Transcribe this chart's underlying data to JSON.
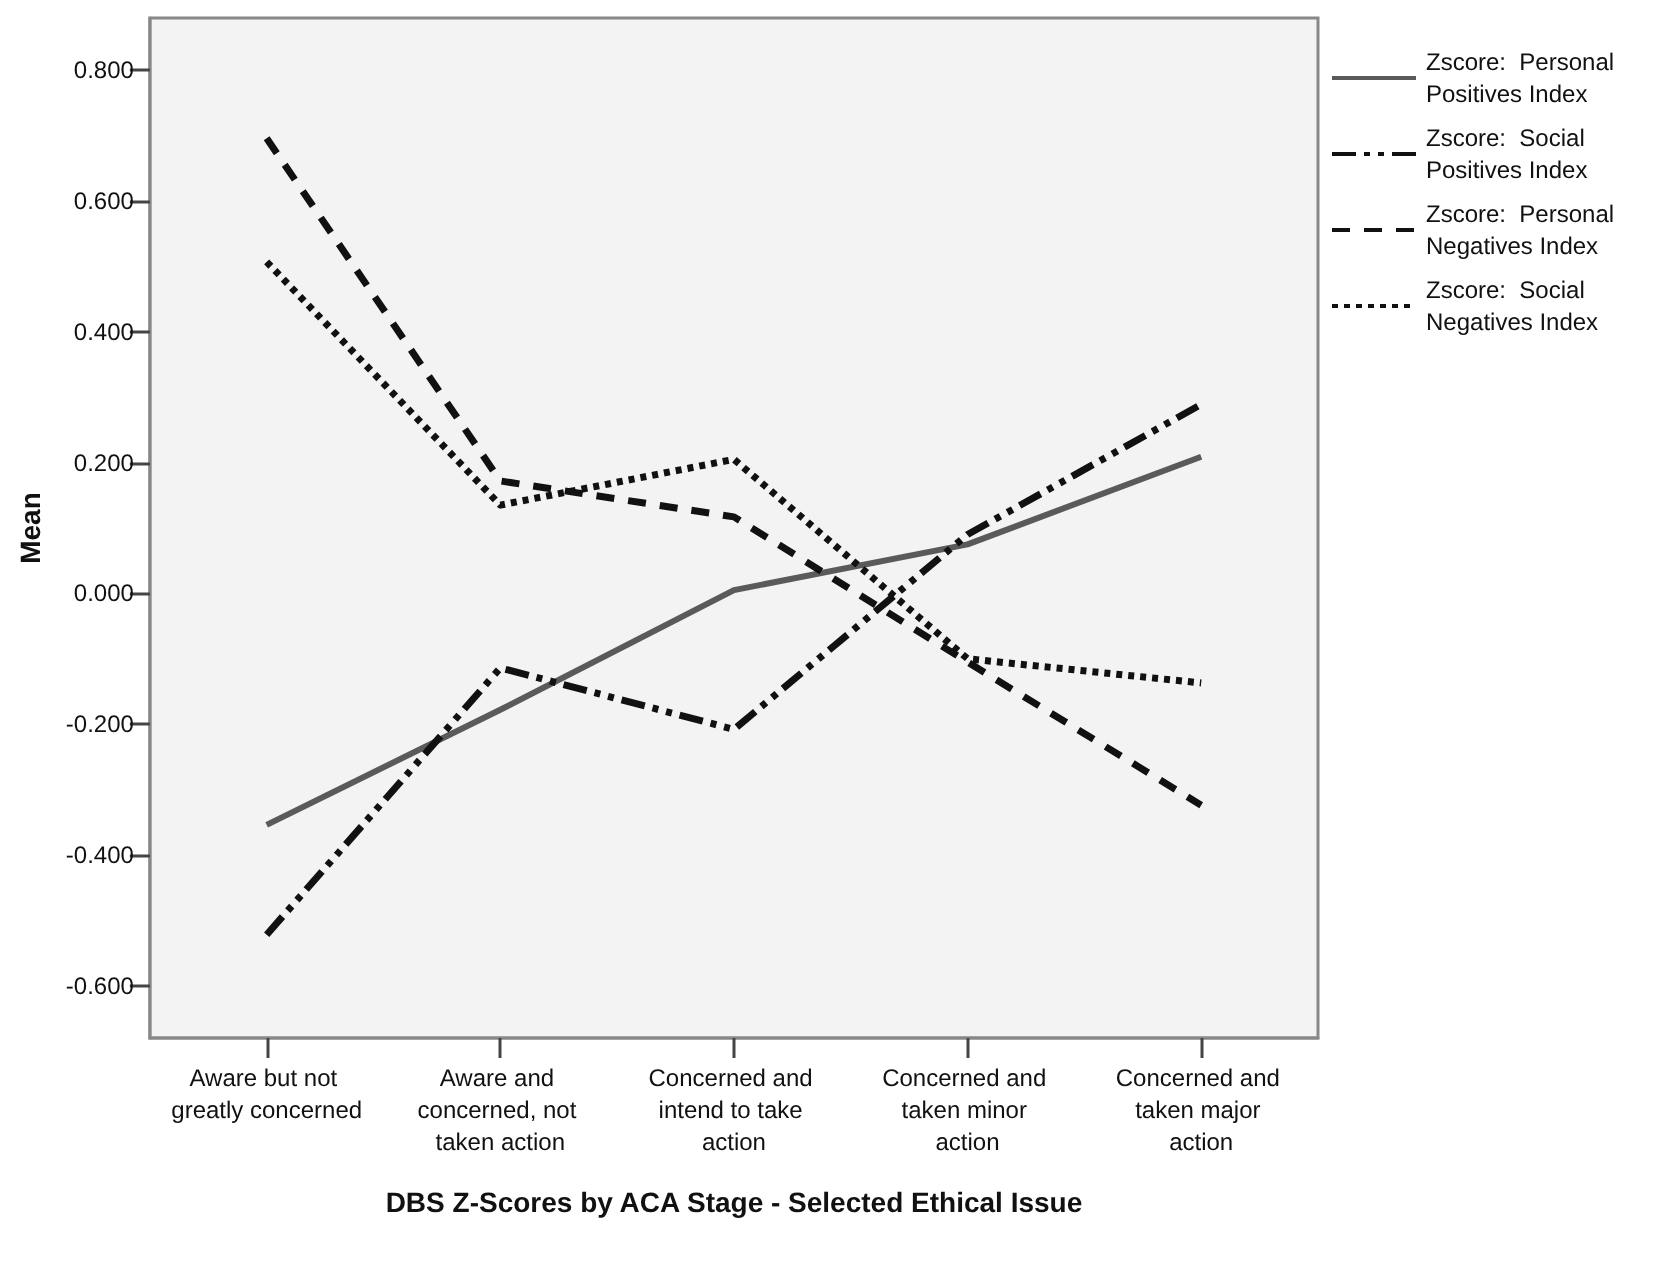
{
  "chart_data": {
    "type": "line",
    "xlabel": "DBS Z-Scores by ACA Stage - Selected Ethical Issue",
    "ylabel": "Mean",
    "categories": [
      "Aware but not greatly concerned",
      "Aware and concerned, not taken action",
      "Concerned and intend to take action",
      "Concerned and taken minor action",
      "Concerned and taken major action"
    ],
    "series": [
      {
        "name": "Zscore:  Personal Positives Index",
        "color": "#5a5a5a",
        "line_style": "solid",
        "values": [
          -0.354,
          -0.178,
          0.005,
          0.075,
          0.209
        ]
      },
      {
        "name": "Zscore:  Social Positives Index",
        "color": "#111111",
        "line_style": "dashdot",
        "values": [
          -0.522,
          -0.114,
          -0.208,
          0.09,
          0.289
        ]
      },
      {
        "name": "Zscore:  Personal Negatives Index",
        "color": "#111111",
        "line_style": "dashed",
        "values": [
          0.696,
          0.172,
          0.117,
          -0.105,
          -0.324
        ]
      },
      {
        "name": "Zscore:  Social Negatives Index",
        "color": "#111111",
        "line_style": "dotted",
        "values": [
          0.507,
          0.135,
          0.205,
          -0.1,
          -0.137
        ]
      }
    ],
    "ylim": [
      -0.68,
      0.88
    ],
    "yticks": [
      {
        "value": -0.6,
        "label": "-0.600"
      },
      {
        "value": -0.4,
        "label": "-0.400"
      },
      {
        "value": -0.2,
        "label": "-0.200"
      },
      {
        "value": 0,
        "label": "0.000"
      },
      {
        "value": 0.2,
        "label": "0.200"
      },
      {
        "value": 0.4,
        "label": "0.400"
      },
      {
        "value": 0.6,
        "label": "0.600"
      },
      {
        "value": 0.8,
        "label": "0.800"
      }
    ],
    "grid": false,
    "legend": "top right",
    "marker": "none"
  }
}
